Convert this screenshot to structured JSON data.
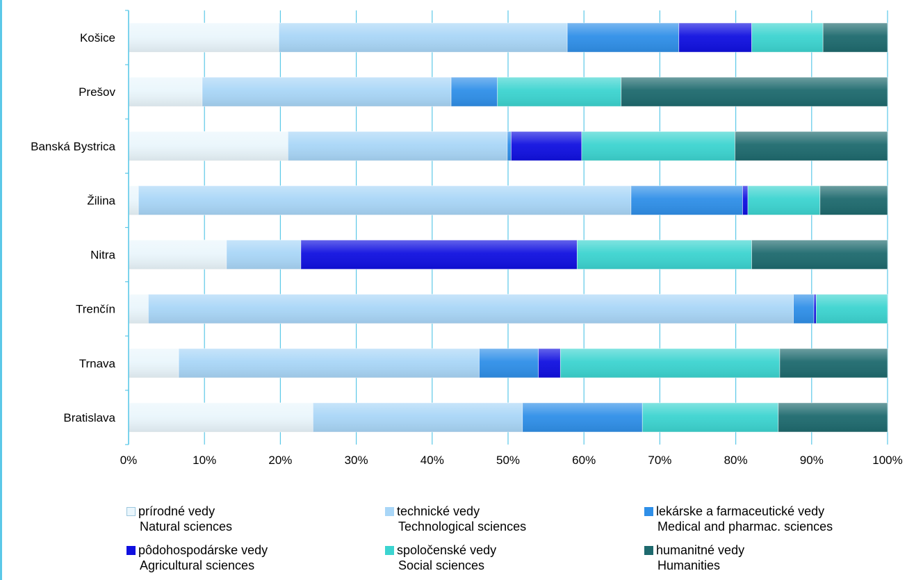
{
  "chart_data": {
    "type": "bar",
    "orientation": "horizontal",
    "stacked": "percent",
    "categories": [
      "Košice",
      "Prešov",
      "Banská Bystrica",
      "Žilina",
      "Nitra",
      "Trenčín",
      "Trnava",
      "Bratislava"
    ],
    "series": [
      {
        "name": "prírodné vedy",
        "name_en": "Natural sciences",
        "color": "#eaf6fc",
        "values": [
          19.8,
          9.7,
          21.0,
          1.3,
          12.9,
          2.6,
          6.6,
          24.3
        ]
      },
      {
        "name": "technické vedy",
        "name_en": "Technological sciences",
        "color": "#a9d6f7",
        "values": [
          38.0,
          32.8,
          28.9,
          64.9,
          9.8,
          85.0,
          39.6,
          27.6
        ]
      },
      {
        "name": "lekárske a farmaceutické vedy",
        "name_en": "Medical and pharmac. sciences",
        "color": "#2f8fe8",
        "values": [
          14.7,
          6.1,
          0.5,
          14.7,
          0.0,
          2.7,
          7.8,
          15.8
        ]
      },
      {
        "name": "pôdohospodárske vedy",
        "name_en": "Agricultural sciences",
        "color": "#1010e0",
        "values": [
          9.6,
          0.0,
          9.3,
          0.7,
          36.4,
          0.3,
          2.9,
          0.0
        ]
      },
      {
        "name": "spoločenské vedy",
        "name_en": "Social sciences",
        "color": "#3cd4d0",
        "values": [
          9.4,
          16.3,
          20.2,
          9.5,
          23.0,
          9.4,
          28.9,
          17.9
        ]
      },
      {
        "name": "humanitné vedy",
        "name_en": "Humanities",
        "color": "#1e6a6e",
        "values": [
          8.5,
          35.1,
          20.1,
          8.9,
          17.9,
          0.0,
          14.2,
          14.4
        ]
      }
    ],
    "xlim": [
      0,
      100
    ],
    "xticks": [
      "0%",
      "10%",
      "20%",
      "30%",
      "40%",
      "50%",
      "60%",
      "70%",
      "80%",
      "90%",
      "100%"
    ],
    "grid": true,
    "legend_position": "bottom"
  }
}
